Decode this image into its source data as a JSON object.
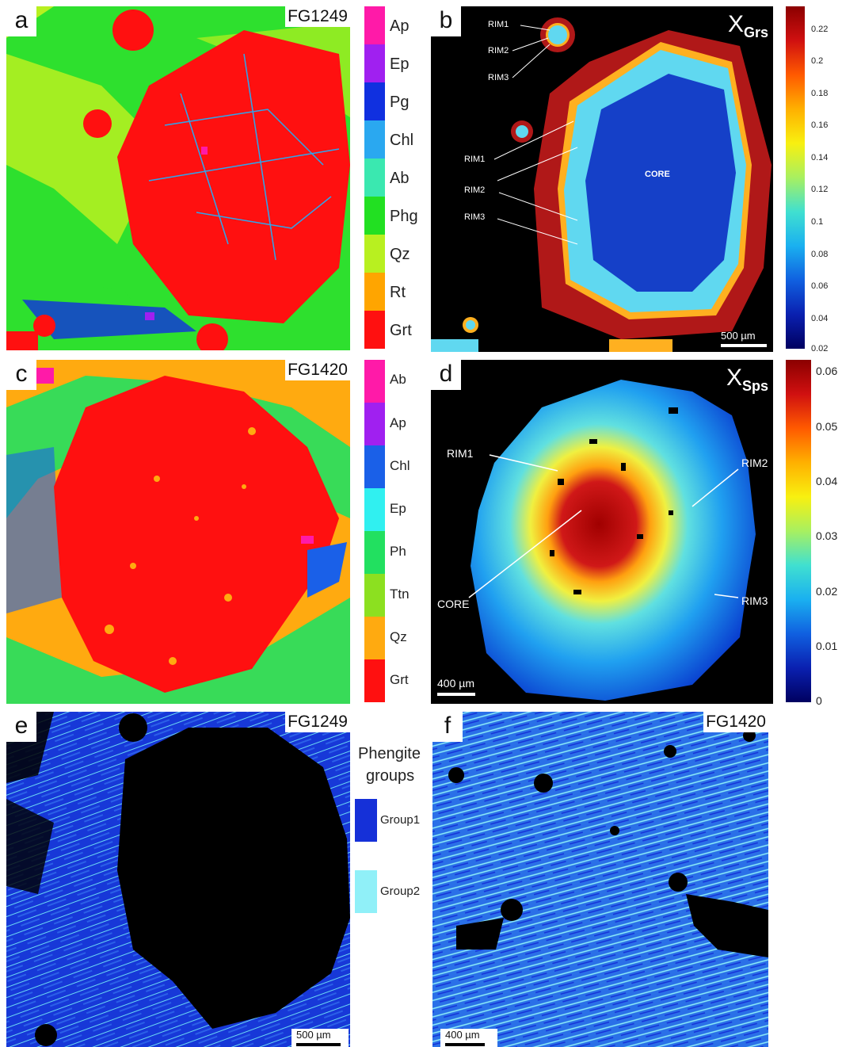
{
  "panel_a": {
    "letter": "a",
    "sample": "FG1249",
    "legend": [
      {
        "label": "Ap",
        "color": "#ff1aa8"
      },
      {
        "label": "Ep",
        "color": "#a020f0"
      },
      {
        "label": "Pg",
        "color": "#1030e0"
      },
      {
        "label": "Chl",
        "color": "#2aa8f0"
      },
      {
        "label": "Ab",
        "color": "#3ae8b0"
      },
      {
        "label": "Phg",
        "color": "#22e022"
      },
      {
        "label": "Qz",
        "color": "#b8f020"
      },
      {
        "label": "Rt",
        "color": "#ffa500"
      },
      {
        "label": "Grt",
        "color": "#ff1010"
      }
    ]
  },
  "panel_b": {
    "letter": "b",
    "x_label_main": "X",
    "x_label_sub": "Grs",
    "annotations": {
      "rim1_small": "RIM1",
      "rim2_small": "RIM2",
      "rim3_small": "RIM3",
      "rim1": "RIM1",
      "rim2": "RIM2",
      "rim3": "RIM3",
      "core": "CORE"
    },
    "scale_bar": "500 µm",
    "colorbar_ticks": [
      "0.22",
      "0.2",
      "0.18",
      "0.16",
      "0.14",
      "0.12",
      "0.1",
      "0.08",
      "0.06",
      "0.04",
      "0.02"
    ]
  },
  "panel_c": {
    "letter": "c",
    "sample": "FG1420",
    "legend": [
      {
        "label": "Ab",
        "color": "#ff1aa8"
      },
      {
        "label": "Ap",
        "color": "#a020f0"
      },
      {
        "label": "Chl",
        "color": "#1a60e8"
      },
      {
        "label": "Ep",
        "color": "#30f0f0"
      },
      {
        "label": "Ph",
        "color": "#22e060"
      },
      {
        "label": "Ttn",
        "color": "#8ce020"
      },
      {
        "label": "Qz",
        "color": "#ffaa10"
      },
      {
        "label": "Grt",
        "color": "#ff1010"
      }
    ]
  },
  "panel_d": {
    "letter": "d",
    "x_label_main": "X",
    "x_label_sub": "Sps",
    "annotations": {
      "rim1": "RIM1",
      "rim2": "RIM2",
      "rim3": "RIM3",
      "core": "CORE"
    },
    "scale_bar": "400 µm",
    "colorbar_ticks": [
      "0.06",
      "0.05",
      "0.04",
      "0.03",
      "0.02",
      "0.01",
      "0"
    ]
  },
  "panel_e": {
    "letter": "e",
    "sample": "FG1249",
    "scale_bar": "500 µm"
  },
  "panel_f": {
    "letter": "f",
    "sample": "FG1420",
    "scale_bar": "400 µm"
  },
  "phengite_legend": {
    "title_line1": "Phengite",
    "title_line2": "groups",
    "groups": [
      {
        "label": "Group1",
        "color": "#1530d8"
      },
      {
        "label": "Group2",
        "color": "#90f0f8"
      }
    ]
  }
}
